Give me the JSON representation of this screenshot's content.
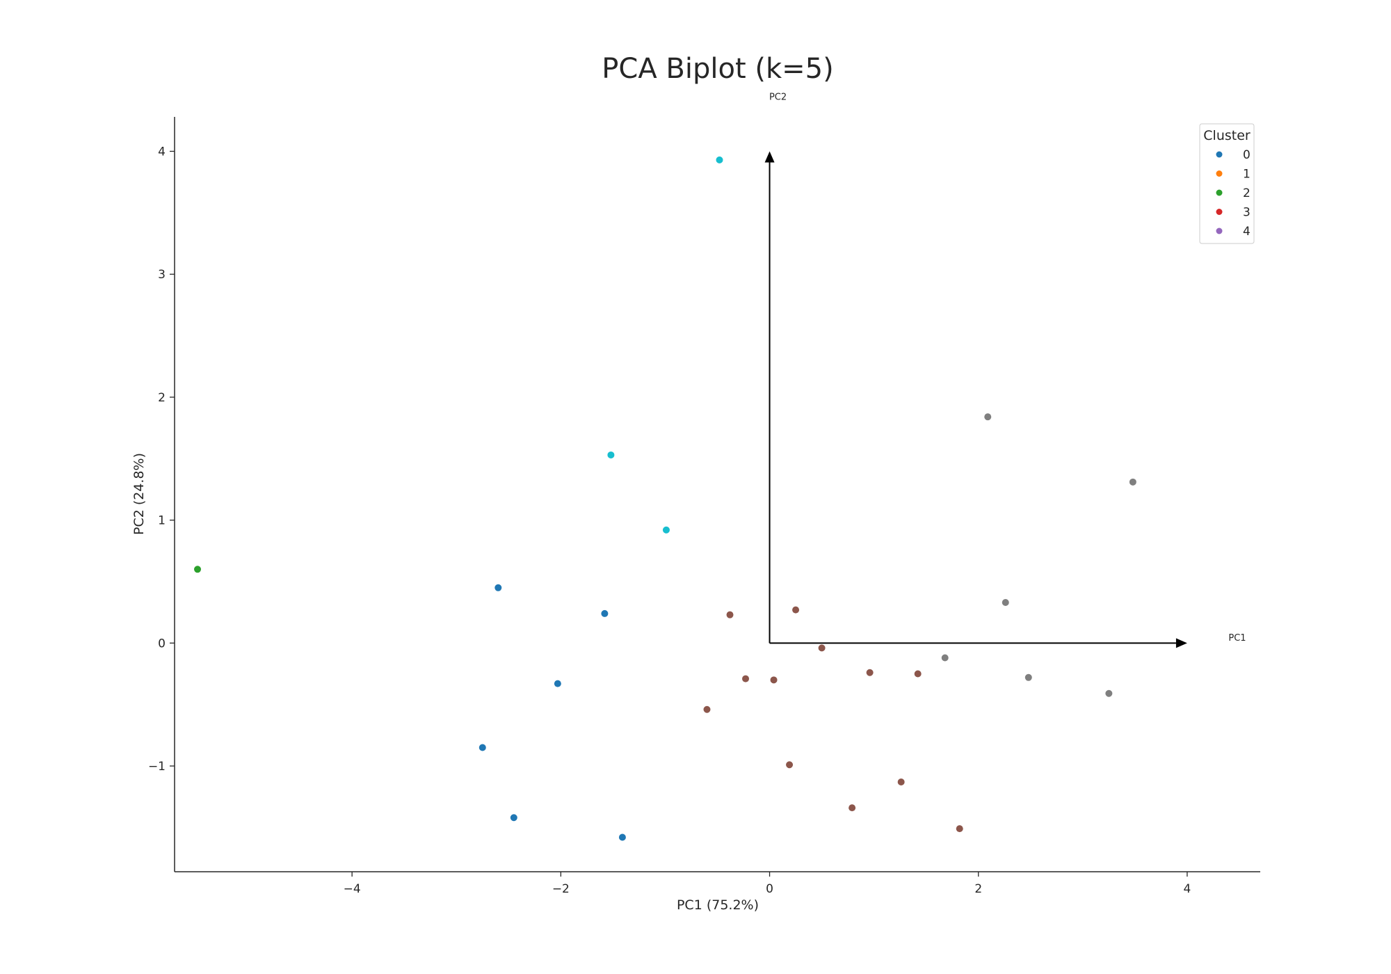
{
  "chart_data": {
    "type": "scatter",
    "title": "PCA Biplot (k=5)",
    "xlabel": "PC1 (75.2%)",
    "ylabel": "PC2 (24.8%)",
    "xlim": [
      -5.7,
      4.7
    ],
    "ylim": [
      -1.86,
      4.28
    ],
    "xticks": [
      -4,
      -2,
      0,
      2,
      4
    ],
    "yticks": [
      -1,
      0,
      1,
      2,
      3,
      4
    ],
    "xtick_labels": [
      "−4",
      "−2",
      "0",
      "2",
      "4"
    ],
    "ytick_labels": [
      "−1",
      "0",
      "1",
      "2",
      "3",
      "4"
    ],
    "grid": false,
    "legend": {
      "title": "Cluster",
      "placement": "top-right",
      "entries": [
        {
          "label": "0",
          "color": "#1f77b4"
        },
        {
          "label": "1",
          "color": "#ff7f0e"
        },
        {
          "label": "2",
          "color": "#2ca02c"
        },
        {
          "label": "3",
          "color": "#d62728"
        },
        {
          "label": "4",
          "color": "#9467bd"
        }
      ]
    },
    "arrows": [
      {
        "label": "PC1",
        "from": [
          0,
          0
        ],
        "to": [
          4,
          0
        ],
        "label_at": [
          4.48,
          0.02
        ]
      },
      {
        "label": "PC2",
        "from": [
          0,
          0
        ],
        "to": [
          0,
          4
        ],
        "label_at": [
          0.08,
          4.42
        ]
      }
    ],
    "series": [
      {
        "color": "#1f77b4",
        "points": [
          [
            -2.6,
            0.45
          ],
          [
            -1.58,
            0.24
          ],
          [
            -2.03,
            -0.33
          ],
          [
            -2.75,
            -0.85
          ],
          [
            -2.45,
            -1.42
          ],
          [
            -1.41,
            -1.58
          ]
        ]
      },
      {
        "color": "#2ca02c",
        "points": [
          [
            -5.48,
            0.6
          ]
        ]
      },
      {
        "color": "#17becf",
        "points": [
          [
            -0.48,
            3.93
          ],
          [
            -1.52,
            1.53
          ],
          [
            -0.99,
            0.92
          ]
        ]
      },
      {
        "color": "#8c564b",
        "points": [
          [
            -0.38,
            0.23
          ],
          [
            0.25,
            0.27
          ],
          [
            0.5,
            -0.04
          ],
          [
            0.96,
            -0.24
          ],
          [
            1.42,
            -0.25
          ],
          [
            -0.23,
            -0.29
          ],
          [
            0.04,
            -0.3
          ],
          [
            -0.6,
            -0.54
          ],
          [
            0.19,
            -0.99
          ],
          [
            1.26,
            -1.13
          ],
          [
            0.79,
            -1.34
          ],
          [
            1.82,
            -1.51
          ]
        ]
      },
      {
        "color": "#7f7f7f",
        "points": [
          [
            2.09,
            1.84
          ],
          [
            3.48,
            1.31
          ],
          [
            2.26,
            0.33
          ],
          [
            1.68,
            -0.12
          ],
          [
            2.48,
            -0.28
          ],
          [
            3.25,
            -0.41
          ]
        ]
      }
    ]
  }
}
